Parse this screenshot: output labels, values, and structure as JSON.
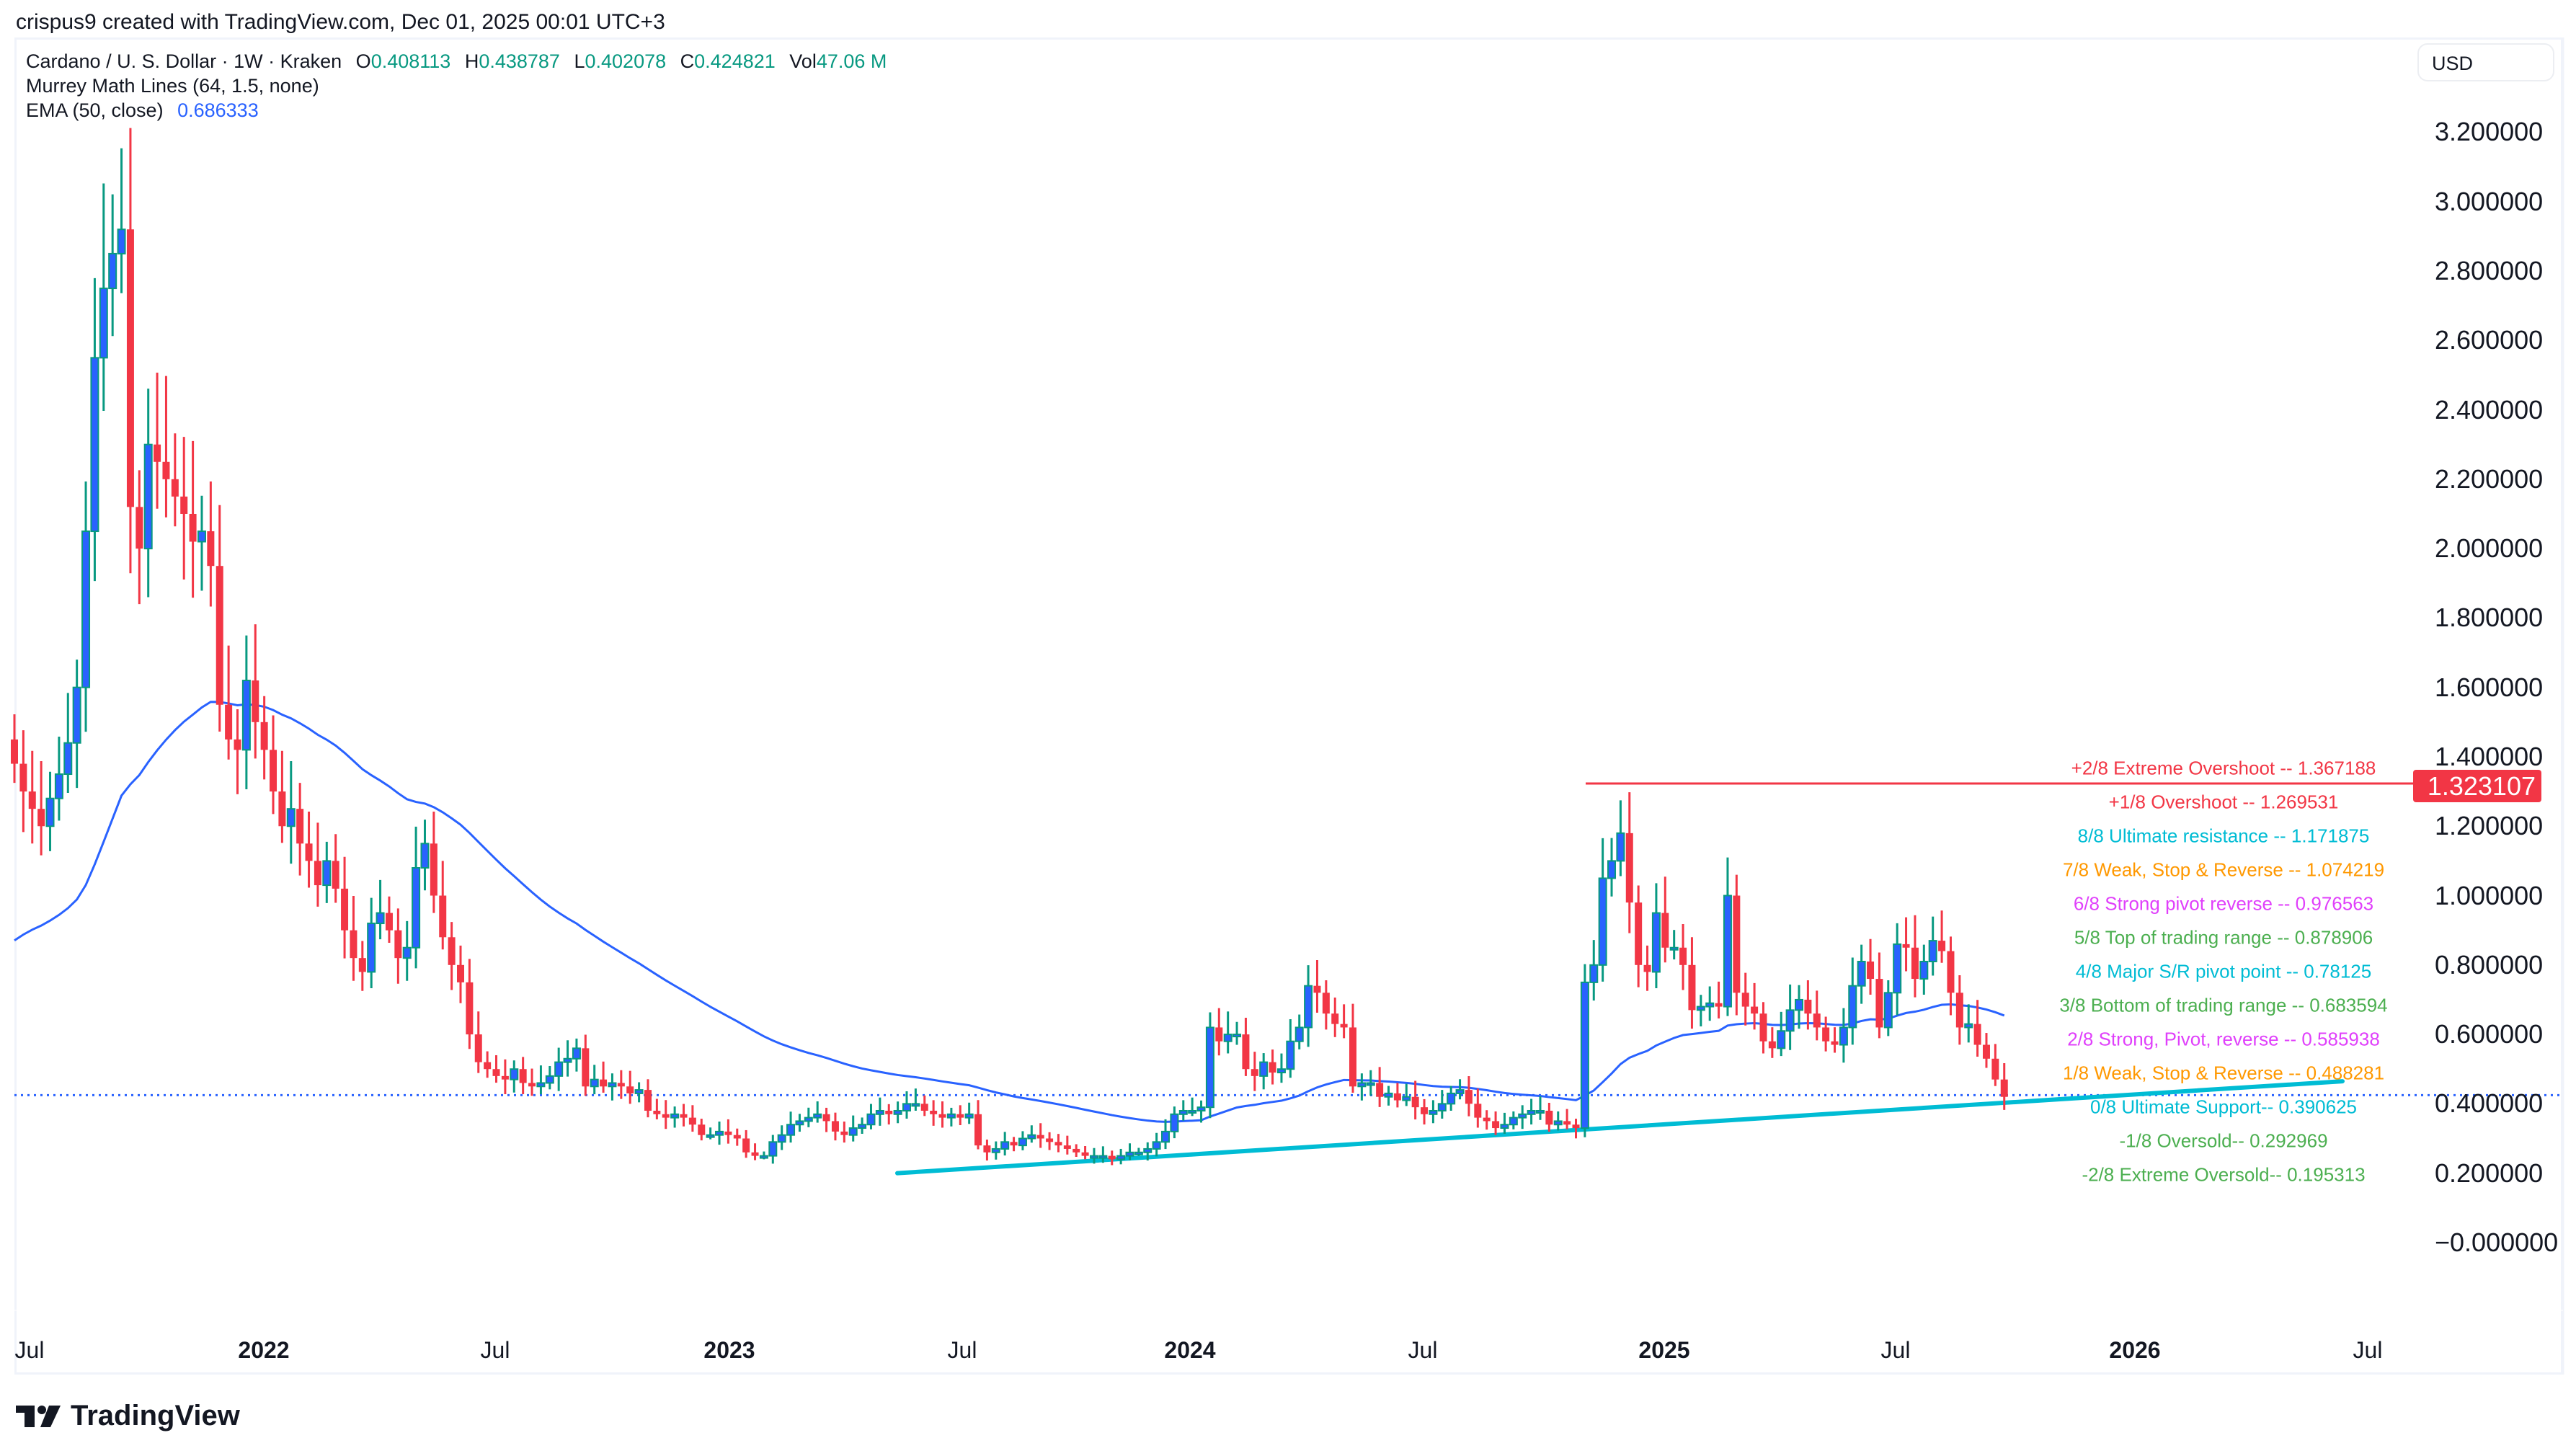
{
  "header": {
    "attribution": "crispus9 created with TradingView.com, Dec 01, 2025 00:01 UTC+3"
  },
  "legend": {
    "symbol": "Cardano / U. S. Dollar · 1W · Kraken",
    "open_label": "O",
    "open": "0.408113",
    "high_label": "H",
    "high": "0.438787",
    "low_label": "L",
    "low": "0.402078",
    "close_label": "C",
    "close": "0.424821",
    "vol_label": "Vol",
    "vol": "47.06 M",
    "murrey": "Murrey Math Lines (64, 1.5, none)",
    "ema_label": "EMA (50, close)",
    "ema_value": "0.686333"
  },
  "currency_button": "USD",
  "colors": {
    "bull_body": "#2962ff",
    "bull_wick": "#089981",
    "bear": "#f23645",
    "ema": "#2962ff",
    "trendline": "#00bcd4",
    "resistance_line": "#f23645",
    "current_price_line": "#2962ff"
  },
  "price_tag": "1.323107",
  "footer": {
    "brand": "TradingView"
  },
  "chart_data": {
    "type": "candlestick",
    "title": "Cardano / U. S. Dollar · 1W · Kraken",
    "xlabel": "",
    "ylabel": "USD",
    "ylim": [
      -0.15,
      3.3
    ],
    "grid": false,
    "y_ticks": [
      "3.200000",
      "3.000000",
      "2.800000",
      "2.600000",
      "2.400000",
      "2.200000",
      "2.000000",
      "1.800000",
      "1.600000",
      "1.400000",
      "1.200000",
      "1.000000",
      "0.800000",
      "0.600000",
      "0.400000",
      "0.200000",
      "−0.000000"
    ],
    "x_ticks": [
      {
        "label": "Jul",
        "x": 41,
        "year": false
      },
      {
        "label": "2022",
        "x": 366,
        "year": true
      },
      {
        "label": "Jul",
        "x": 687,
        "year": false
      },
      {
        "label": "2023",
        "x": 1012,
        "year": true
      },
      {
        "label": "Jul",
        "x": 1335,
        "year": false
      },
      {
        "label": "2024",
        "x": 1651,
        "year": true
      },
      {
        "label": "Jul",
        "x": 1974,
        "year": false
      },
      {
        "label": "2025",
        "x": 2309,
        "year": true
      },
      {
        "label": "Jul",
        "x": 2630,
        "year": false
      },
      {
        "label": "2026",
        "x": 2962,
        "year": true
      },
      {
        "label": "Jul",
        "x": 3285,
        "year": false
      }
    ],
    "last_candle": {
      "open": 0.408113,
      "high": 0.438787,
      "low": 0.402078,
      "close": 0.424821,
      "volume": "47.06M"
    },
    "ema50_last": 0.686333,
    "horizontal_resistance": 1.323107,
    "current_price": 0.424821,
    "murrey_levels": [
      {
        "label": "+2/8 Extreme Overshoot --  1.367188",
        "value": 1.367188,
        "color": "#f23645"
      },
      {
        "label": "+1/8 Overshoot --  1.269531",
        "value": 1.269531,
        "color": "#f23645"
      },
      {
        "label": "8/8 Ultimate resistance --  1.171875",
        "value": 1.171875,
        "color": "#00bcd4"
      },
      {
        "label": "7/8 Weak, Stop & Reverse --  1.074219",
        "value": 1.074219,
        "color": "#ff9800"
      },
      {
        "label": "6/8 Strong pivot reverse --  0.976563",
        "value": 0.976563,
        "color": "#e040fb"
      },
      {
        "label": "5/8 Top of trading range --  0.878906",
        "value": 0.878906,
        "color": "#4caf50"
      },
      {
        "label": "4/8 Major S/R pivot point --  0.78125",
        "value": 0.78125,
        "color": "#00bcd4"
      },
      {
        "label": "3/8 Bottom of trading range --  0.683594",
        "value": 0.683594,
        "color": "#4caf50"
      },
      {
        "label": "2/8 Strong, Pivot, reverse --  0.585938",
        "value": 0.585938,
        "color": "#e040fb"
      },
      {
        "label": "1/8 Weak, Stop & Reverse --  0.488281",
        "value": 0.488281,
        "color": "#ff9800"
      },
      {
        "label": "0/8 Ultimate Support--  0.390625",
        "value": 0.390625,
        "color": "#00bcd4"
      },
      {
        "label": "-1/8 Oversold--  0.292969",
        "value": 0.292969,
        "color": "#4caf50"
      },
      {
        "label": "-2/8 Extreme Oversold--  0.195313",
        "value": 0.195313,
        "color": "#4caf50"
      }
    ],
    "trendline": {
      "x1": 1245,
      "p1": 0.2,
      "x2": 3250,
      "p2": 0.465
    },
    "weekly_close_approx": [
      1.38,
      1.3,
      1.25,
      1.2,
      1.28,
      1.35,
      1.44,
      1.6,
      2.05,
      2.55,
      2.75,
      2.85,
      2.92,
      2.12,
      2.0,
      2.3,
      2.25,
      2.2,
      2.15,
      2.1,
      2.02,
      2.05,
      1.95,
      1.55,
      1.45,
      1.42,
      1.62,
      1.5,
      1.42,
      1.3,
      1.2,
      1.25,
      1.15,
      1.1,
      1.03,
      1.1,
      1.02,
      0.9,
      0.82,
      0.78,
      0.92,
      0.95,
      0.9,
      0.82,
      0.85,
      1.08,
      1.15,
      1.0,
      0.88,
      0.8,
      0.75,
      0.6,
      0.52,
      0.5,
      0.48,
      0.47,
      0.5,
      0.46,
      0.45,
      0.46,
      0.48,
      0.52,
      0.53,
      0.56,
      0.45,
      0.47,
      0.45,
      0.46,
      0.45,
      0.43,
      0.44,
      0.38,
      0.37,
      0.36,
      0.37,
      0.36,
      0.34,
      0.31,
      0.31,
      0.32,
      0.31,
      0.3,
      0.26,
      0.25,
      0.25,
      0.29,
      0.31,
      0.34,
      0.35,
      0.36,
      0.37,
      0.35,
      0.32,
      0.31,
      0.33,
      0.34,
      0.37,
      0.38,
      0.37,
      0.38,
      0.4,
      0.4,
      0.38,
      0.37,
      0.36,
      0.37,
      0.36,
      0.37,
      0.28,
      0.26,
      0.27,
      0.29,
      0.28,
      0.3,
      0.31,
      0.3,
      0.29,
      0.28,
      0.27,
      0.26,
      0.25,
      0.25,
      0.25,
      0.24,
      0.25,
      0.26,
      0.26,
      0.27,
      0.29,
      0.32,
      0.37,
      0.38,
      0.38,
      0.39,
      0.62,
      0.58,
      0.6,
      0.6,
      0.5,
      0.48,
      0.52,
      0.49,
      0.5,
      0.58,
      0.62,
      0.74,
      0.72,
      0.66,
      0.63,
      0.62,
      0.45,
      0.46,
      0.46,
      0.42,
      0.43,
      0.41,
      0.42,
      0.39,
      0.37,
      0.38,
      0.4,
      0.43,
      0.44,
      0.4,
      0.36,
      0.35,
      0.33,
      0.34,
      0.36,
      0.37,
      0.38,
      0.38,
      0.34,
      0.35,
      0.34,
      0.33,
      0.75,
      0.8,
      1.05,
      1.1,
      1.18,
      0.98,
      0.8,
      0.78,
      0.95,
      0.85,
      0.85,
      0.8,
      0.67,
      0.68,
      0.69,
      0.68,
      1.0,
      0.72,
      0.68,
      0.66,
      0.58,
      0.56,
      0.61,
      0.67,
      0.7,
      0.66,
      0.62,
      0.58,
      0.57,
      0.62,
      0.74,
      0.81,
      0.76,
      0.62,
      0.72,
      0.86,
      0.85,
      0.76,
      0.81,
      0.87,
      0.84,
      0.72,
      0.62,
      0.63,
      0.57,
      0.53,
      0.47,
      0.42
    ]
  }
}
